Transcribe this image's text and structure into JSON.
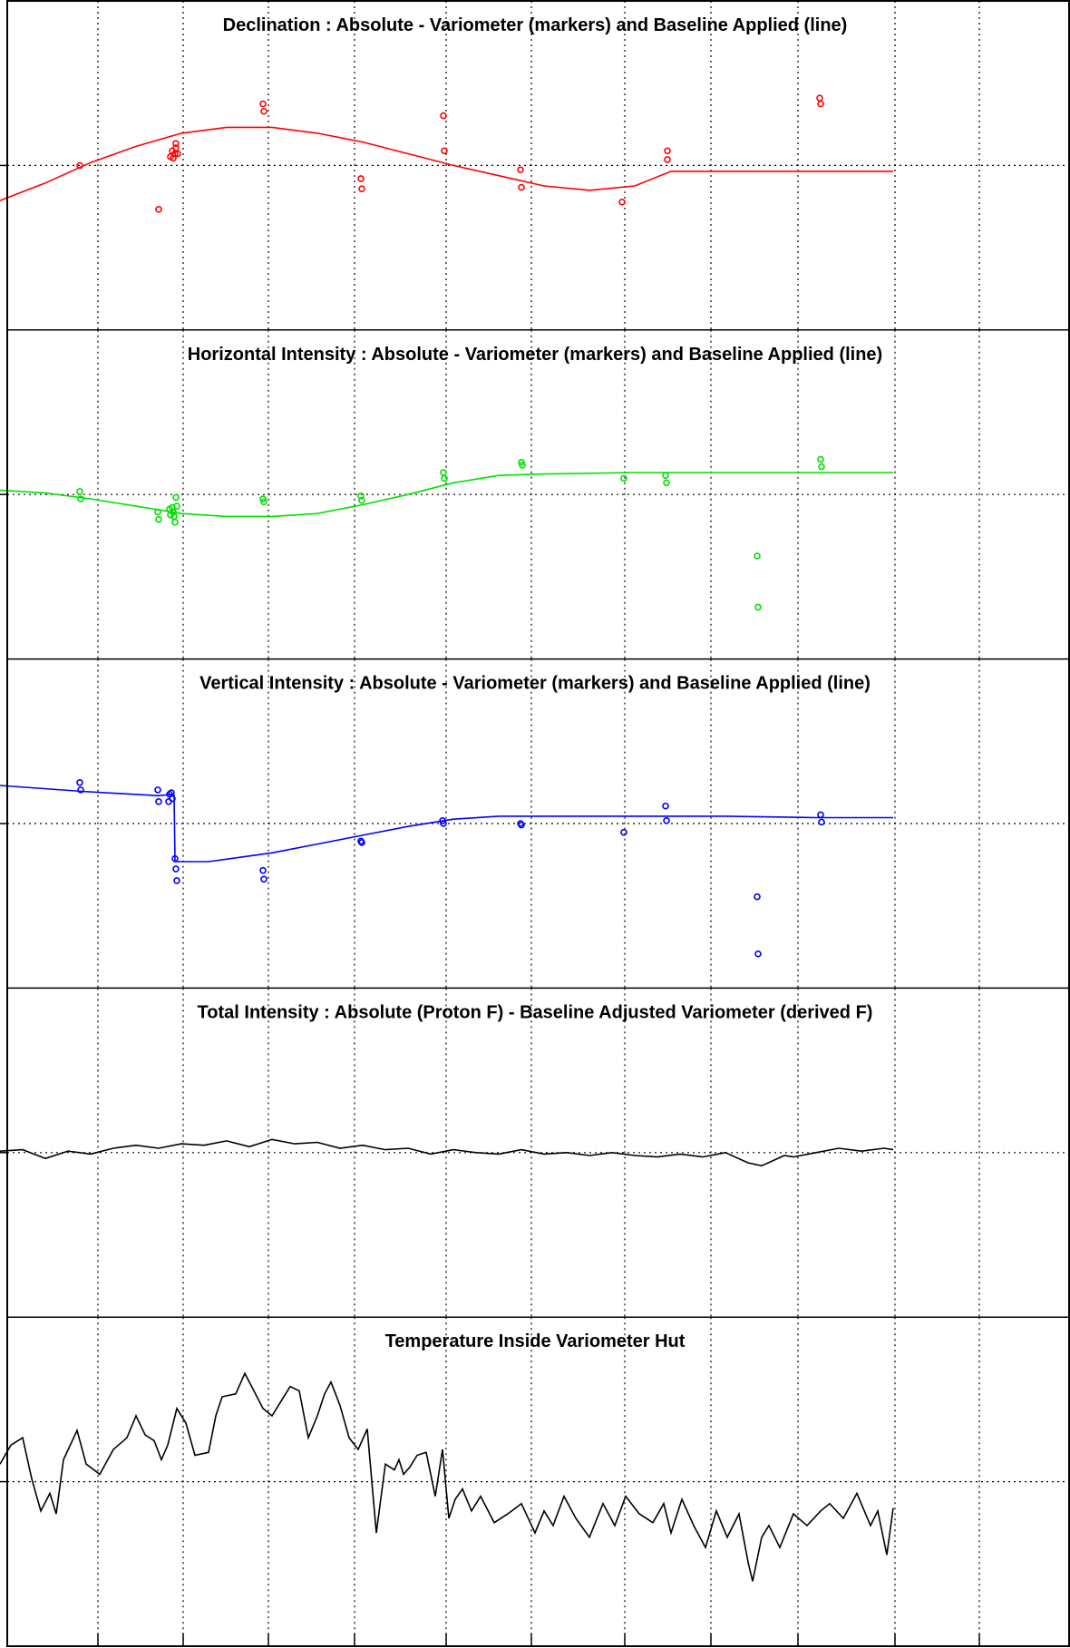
{
  "chart_data": [
    {
      "type": "scatter",
      "title": "Declination : Absolute - Variometer (markers) and Baseline Applied (line)",
      "xlim": [
        0,
        1180
      ],
      "ylim": [
        -1,
        1
      ],
      "color": "#ff0000",
      "grid": true,
      "series": [
        {
          "kind": "markers",
          "x": [
            88,
            175,
            188,
            190,
            191,
            193,
            194,
            194,
            196,
            290,
            291,
            398,
            399,
            489,
            490,
            574,
            575,
            686,
            736,
            736,
            904,
            905
          ],
          "y": [
            0.0,
            -0.3,
            0.06,
            0.1,
            0.05,
            0.08,
            0.12,
            0.15,
            0.08,
            0.42,
            0.37,
            -0.09,
            -0.16,
            0.34,
            0.1,
            -0.03,
            -0.15,
            -0.25,
            0.1,
            0.04,
            0.46,
            0.42
          ]
        },
        {
          "kind": "line",
          "x": [
            0,
            50,
            100,
            150,
            200,
            250,
            300,
            350,
            400,
            450,
            500,
            550,
            600,
            650,
            700,
            740,
            800,
            900,
            985
          ],
          "y": [
            -0.24,
            -0.12,
            0.02,
            0.13,
            0.22,
            0.26,
            0.26,
            0.22,
            0.16,
            0.08,
            0.0,
            -0.07,
            -0.14,
            -0.17,
            -0.14,
            -0.04,
            -0.04,
            -0.04,
            -0.04
          ]
        }
      ]
    },
    {
      "type": "scatter",
      "title": "Horizontal Intensity : Absolute - Variometer (markers) and Baseline Applied (line)",
      "xlim": [
        0,
        1180
      ],
      "ylim": [
        -1,
        1
      ],
      "color": "#00e000",
      "grid": true,
      "series": [
        {
          "kind": "markers",
          "x": [
            88,
            89,
            174,
            175,
            187,
            188,
            190,
            191,
            192,
            193,
            194,
            195,
            290,
            291,
            398,
            399,
            489,
            490,
            575,
            576,
            688,
            734,
            735,
            835,
            836,
            905,
            906
          ],
          "y": [
            0.02,
            -0.03,
            -0.12,
            -0.17,
            -0.1,
            -0.14,
            -0.09,
            -0.12,
            -0.15,
            -0.19,
            -0.02,
            -0.08,
            -0.03,
            -0.05,
            -0.01,
            -0.04,
            0.15,
            0.11,
            0.22,
            0.2,
            0.11,
            0.13,
            0.08,
            -0.42,
            -0.77,
            0.24,
            0.19
          ]
        },
        {
          "kind": "line",
          "x": [
            0,
            50,
            100,
            150,
            200,
            250,
            300,
            350,
            400,
            450,
            500,
            550,
            600,
            700,
            800,
            900,
            985
          ],
          "y": [
            0.03,
            0.01,
            -0.03,
            -0.08,
            -0.13,
            -0.15,
            -0.15,
            -0.13,
            -0.07,
            0.0,
            0.08,
            0.13,
            0.14,
            0.15,
            0.15,
            0.15,
            0.15
          ]
        }
      ]
    },
    {
      "type": "scatter",
      "title": "Vertical Intensity : Absolute - Variometer (markers) and Baseline Applied (line)",
      "xlim": [
        0,
        1180
      ],
      "ylim": [
        -1,
        1
      ],
      "color": "#0000ff",
      "grid": true,
      "series": [
        {
          "kind": "markers",
          "x": [
            88,
            89,
            174,
            175,
            186,
            187,
            189,
            190,
            193,
            194,
            195,
            290,
            291,
            398,
            399,
            488,
            489,
            574,
            575,
            688,
            734,
            735,
            835,
            836,
            905,
            906
          ],
          "y": [
            0.28,
            0.23,
            0.23,
            0.15,
            0.15,
            0.2,
            0.21,
            0.17,
            -0.24,
            -0.31,
            -0.39,
            -0.32,
            -0.38,
            -0.12,
            -0.13,
            0.02,
            0.0,
            0.0,
            -0.01,
            -0.06,
            0.12,
            0.02,
            -0.5,
            -0.89,
            0.06,
            0.01
          ]
        },
        {
          "kind": "line",
          "x": [
            0,
            90,
            175,
            190,
            192,
            193,
            230,
            300,
            350,
            400,
            450,
            500,
            550,
            600,
            650,
            700,
            800,
            900,
            985
          ],
          "y": [
            0.26,
            0.22,
            0.19,
            0.2,
            0.19,
            -0.26,
            -0.26,
            -0.2,
            -0.14,
            -0.08,
            -0.02,
            0.03,
            0.05,
            0.05,
            0.05,
            0.05,
            0.05,
            0.04,
            0.04
          ]
        }
      ]
    },
    {
      "type": "line",
      "title": "Total Intensity : Absolute (Proton F) - Baseline Adjusted Variometer (derived F)",
      "xlim": [
        0,
        1180
      ],
      "ylim": [
        -1,
        1
      ],
      "color": "#000000",
      "grid": true,
      "series": [
        {
          "kind": "line",
          "x": [
            0,
            25,
            50,
            75,
            100,
            125,
            150,
            175,
            200,
            225,
            250,
            275,
            300,
            325,
            350,
            375,
            400,
            425,
            450,
            475,
            500,
            525,
            550,
            575,
            600,
            625,
            650,
            675,
            700,
            725,
            750,
            775,
            800,
            825,
            840,
            865,
            875,
            900,
            925,
            950,
            975,
            985
          ],
          "y": [
            0.01,
            0.02,
            -0.04,
            0.01,
            -0.01,
            0.03,
            0.05,
            0.03,
            0.06,
            0.05,
            0.08,
            0.04,
            0.09,
            0.06,
            0.07,
            0.03,
            0.05,
            0.02,
            0.03,
            -0.01,
            0.02,
            0.0,
            -0.01,
            0.02,
            -0.01,
            0.0,
            -0.02,
            0.0,
            -0.02,
            -0.03,
            -0.01,
            -0.03,
            0.0,
            -0.07,
            -0.09,
            -0.02,
            -0.03,
            0.0,
            0.03,
            0.01,
            0.03,
            0.02
          ]
        }
      ]
    },
    {
      "type": "line",
      "title": "Temperature Inside Variometer Hut",
      "xlim": [
        0,
        1180
      ],
      "ylim": [
        -1,
        1
      ],
      "color": "#000000",
      "grid": true,
      "series": [
        {
          "kind": "line",
          "x": [
            0,
            12,
            25,
            35,
            45,
            55,
            62,
            70,
            85,
            95,
            110,
            125,
            140,
            150,
            160,
            170,
            178,
            185,
            195,
            205,
            215,
            230,
            238,
            245,
            260,
            270,
            280,
            290,
            300,
            310,
            320,
            330,
            340,
            350,
            358,
            365,
            375,
            385,
            395,
            405,
            415,
            425,
            435,
            440,
            445,
            452,
            460,
            470,
            480,
            488,
            495,
            502,
            510,
            520,
            530,
            545,
            560,
            575,
            590,
            600,
            610,
            622,
            635,
            650,
            665,
            678,
            690,
            705,
            720,
            732,
            740,
            752,
            765,
            778,
            790,
            802,
            815,
            825,
            830,
            840,
            848,
            860,
            875,
            890,
            905,
            915,
            930,
            945,
            960,
            968,
            978,
            985
          ],
          "y": [
            0.12,
            0.25,
            0.3,
            0.02,
            -0.2,
            -0.08,
            -0.22,
            0.15,
            0.35,
            0.12,
            0.05,
            0.22,
            0.3,
            0.45,
            0.32,
            0.28,
            0.15,
            0.25,
            0.5,
            0.4,
            0.18,
            0.2,
            0.45,
            0.58,
            0.6,
            0.74,
            0.62,
            0.5,
            0.45,
            0.55,
            0.65,
            0.62,
            0.3,
            0.45,
            0.6,
            0.68,
            0.52,
            0.3,
            0.22,
            0.36,
            -0.35,
            0.12,
            0.08,
            0.15,
            0.05,
            0.1,
            0.18,
            0.2,
            -0.1,
            0.22,
            -0.25,
            -0.12,
            -0.05,
            -0.2,
            -0.1,
            -0.28,
            -0.22,
            -0.15,
            -0.35,
            -0.2,
            -0.3,
            -0.1,
            -0.25,
            -0.38,
            -0.15,
            -0.3,
            -0.1,
            -0.22,
            -0.28,
            -0.15,
            -0.35,
            -0.12,
            -0.3,
            -0.45,
            -0.2,
            -0.38,
            -0.22,
            -0.55,
            -0.68,
            -0.38,
            -0.3,
            -0.45,
            -0.22,
            -0.3,
            -0.2,
            -0.15,
            -0.25,
            -0.08,
            -0.3,
            -0.2,
            -0.5,
            -0.18
          ]
        }
      ]
    }
  ]
}
